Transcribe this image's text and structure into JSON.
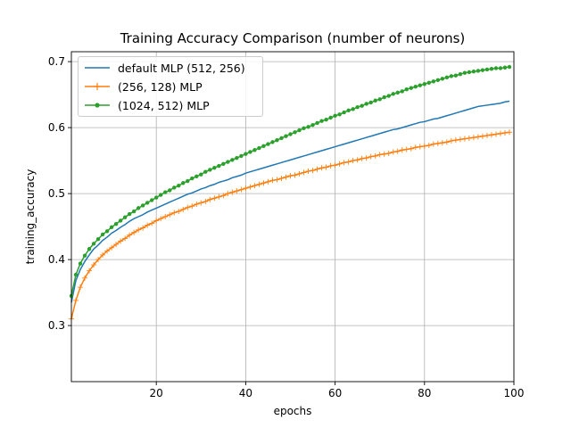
{
  "chart_data": {
    "type": "line",
    "title": "Training Accuracy Comparison (number of neurons)",
    "xlabel": "epochs",
    "ylabel": "training_accuracy",
    "xlim": [
      1,
      100
    ],
    "ylim": [
      0.215,
      0.715
    ],
    "xticks": [
      20,
      40,
      60,
      80,
      100
    ],
    "yticks": [
      0.3,
      0.4,
      0.5,
      0.6,
      0.7
    ],
    "grid": true,
    "legend_position": "upper-left",
    "x": [
      1,
      2,
      3,
      4,
      5,
      6,
      7,
      8,
      9,
      10,
      11,
      12,
      13,
      14,
      15,
      16,
      17,
      18,
      19,
      20,
      21,
      22,
      23,
      24,
      25,
      26,
      27,
      28,
      29,
      30,
      31,
      32,
      33,
      34,
      35,
      36,
      37,
      38,
      39,
      40,
      41,
      42,
      43,
      44,
      45,
      46,
      47,
      48,
      49,
      50,
      51,
      52,
      53,
      54,
      55,
      56,
      57,
      58,
      59,
      60,
      61,
      62,
      63,
      64,
      65,
      66,
      67,
      68,
      69,
      70,
      71,
      72,
      73,
      74,
      75,
      76,
      77,
      78,
      79,
      80,
      81,
      82,
      83,
      84,
      85,
      86,
      87,
      88,
      89,
      90,
      91,
      92,
      93,
      94,
      95,
      96,
      97,
      98,
      99
    ],
    "series": [
      {
        "name": "default MLP (512, 256)",
        "color": "#1f77b4",
        "marker": "none",
        "values": [
          0.335,
          0.368,
          0.385,
          0.397,
          0.407,
          0.416,
          0.422,
          0.429,
          0.434,
          0.44,
          0.444,
          0.449,
          0.453,
          0.458,
          0.462,
          0.465,
          0.468,
          0.472,
          0.475,
          0.478,
          0.481,
          0.484,
          0.487,
          0.49,
          0.493,
          0.496,
          0.499,
          0.501,
          0.504,
          0.507,
          0.509,
          0.512,
          0.514,
          0.517,
          0.519,
          0.521,
          0.524,
          0.526,
          0.528,
          0.531,
          0.533,
          0.535,
          0.537,
          0.539,
          0.541,
          0.543,
          0.545,
          0.547,
          0.549,
          0.551,
          0.553,
          0.555,
          0.557,
          0.559,
          0.561,
          0.563,
          0.565,
          0.567,
          0.569,
          0.571,
          0.573,
          0.575,
          0.577,
          0.579,
          0.581,
          0.583,
          0.585,
          0.587,
          0.589,
          0.591,
          0.593,
          0.595,
          0.597,
          0.598,
          0.6,
          0.602,
          0.604,
          0.606,
          0.608,
          0.609,
          0.611,
          0.613,
          0.614,
          0.616,
          0.618,
          0.62,
          0.622,
          0.624,
          0.626,
          0.628,
          0.63,
          0.632,
          0.633,
          0.634,
          0.635,
          0.636,
          0.637,
          0.639,
          0.64
        ]
      },
      {
        "name": "(256, 128) MLP",
        "color": "#ff7f0e",
        "marker": "plus",
        "values": [
          0.31,
          0.338,
          0.358,
          0.372,
          0.383,
          0.392,
          0.4,
          0.407,
          0.413,
          0.418,
          0.423,
          0.428,
          0.432,
          0.437,
          0.441,
          0.445,
          0.448,
          0.452,
          0.455,
          0.459,
          0.462,
          0.465,
          0.468,
          0.471,
          0.473,
          0.476,
          0.479,
          0.481,
          0.484,
          0.486,
          0.488,
          0.491,
          0.493,
          0.495,
          0.497,
          0.5,
          0.502,
          0.504,
          0.506,
          0.508,
          0.51,
          0.512,
          0.514,
          0.516,
          0.518,
          0.52,
          0.521,
          0.523,
          0.525,
          0.527,
          0.528,
          0.53,
          0.532,
          0.534,
          0.535,
          0.537,
          0.539,
          0.54,
          0.542,
          0.543,
          0.545,
          0.547,
          0.548,
          0.55,
          0.551,
          0.553,
          0.554,
          0.556,
          0.557,
          0.559,
          0.56,
          0.561,
          0.563,
          0.564,
          0.566,
          0.567,
          0.568,
          0.57,
          0.571,
          0.572,
          0.573,
          0.575,
          0.576,
          0.577,
          0.578,
          0.58,
          0.581,
          0.582,
          0.583,
          0.584,
          0.585,
          0.586,
          0.587,
          0.588,
          0.589,
          0.59,
          0.591,
          0.592,
          0.593
        ]
      },
      {
        "name": "(1024, 512) MLP",
        "color": "#2ca02c",
        "marker": "dot",
        "values": [
          0.345,
          0.377,
          0.394,
          0.406,
          0.416,
          0.424,
          0.431,
          0.438,
          0.443,
          0.449,
          0.454,
          0.459,
          0.464,
          0.469,
          0.473,
          0.478,
          0.482,
          0.486,
          0.49,
          0.494,
          0.498,
          0.502,
          0.505,
          0.509,
          0.512,
          0.516,
          0.519,
          0.523,
          0.526,
          0.529,
          0.533,
          0.536,
          0.539,
          0.542,
          0.545,
          0.548,
          0.551,
          0.554,
          0.557,
          0.56,
          0.563,
          0.566,
          0.569,
          0.572,
          0.575,
          0.578,
          0.581,
          0.584,
          0.587,
          0.59,
          0.593,
          0.596,
          0.599,
          0.601,
          0.604,
          0.607,
          0.61,
          0.612,
          0.615,
          0.618,
          0.62,
          0.623,
          0.626,
          0.628,
          0.631,
          0.633,
          0.636,
          0.638,
          0.641,
          0.643,
          0.646,
          0.648,
          0.651,
          0.653,
          0.655,
          0.658,
          0.66,
          0.662,
          0.664,
          0.666,
          0.668,
          0.67,
          0.672,
          0.674,
          0.676,
          0.678,
          0.679,
          0.681,
          0.683,
          0.684,
          0.685,
          0.686,
          0.687,
          0.688,
          0.689,
          0.69,
          0.69,
          0.691,
          0.692
        ]
      }
    ]
  }
}
